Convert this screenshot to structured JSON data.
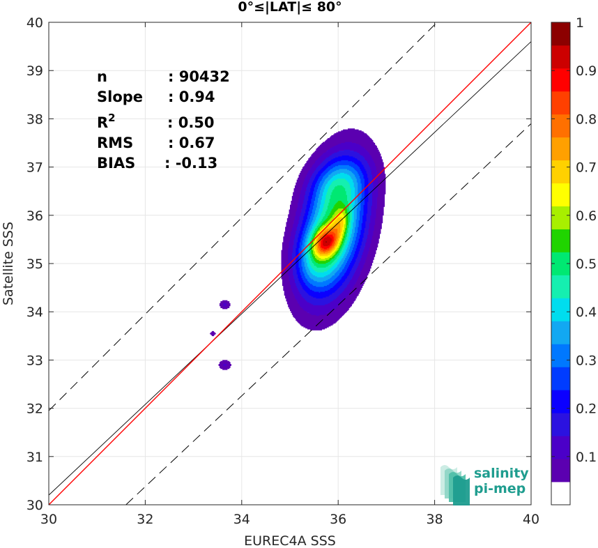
{
  "chart_data": {
    "type": "heatmap",
    "title": "0°≤|LAT|≤ 80°",
    "xlabel": "EUREC4A SSS",
    "ylabel": "Satellite SSS",
    "xlim": [
      30,
      40
    ],
    "ylim": [
      30,
      40
    ],
    "xticks": [
      "30",
      "32",
      "34",
      "36",
      "38",
      "40"
    ],
    "yticks": [
      "30",
      "31",
      "32",
      "33",
      "34",
      "35",
      "36",
      "37",
      "38",
      "39",
      "40"
    ],
    "grid": true,
    "stats": [
      {
        "label": "n",
        "value": ": 90432"
      },
      {
        "label": "Slope",
        "value": ": 0.94"
      },
      {
        "label": "R",
        "sup": "2",
        "value": ": 0.50"
      },
      {
        "label": "RMS",
        "value": ": 0.67"
      },
      {
        "label": "BIAS",
        "value": ": -0.13"
      }
    ],
    "lines": {
      "identity": {
        "x": [
          30,
          40
        ],
        "y": [
          30,
          40
        ],
        "color": "#ff0000"
      },
      "fit": {
        "x": [
          30,
          40
        ],
        "y": [
          30.2,
          39.6
        ],
        "color": "#000000"
      },
      "upper_bound": {
        "x": [
          30,
          40
        ],
        "y": [
          31.95,
          41.95
        ],
        "style": "dashed"
      },
      "lower_bound": {
        "x": [
          31.6,
          40
        ],
        "y": [
          30,
          37.9
        ],
        "style": "dashed"
      }
    },
    "density_peaks": [
      {
        "x": 35.9,
        "y": 35.7,
        "sx": 0.48,
        "sy": 0.95,
        "rho": 0.35,
        "w": 0.62
      },
      {
        "x": 35.75,
        "y": 35.45,
        "sx": 0.18,
        "sy": 0.2,
        "rho": 0.2,
        "w": 0.45
      },
      {
        "x": 36.05,
        "y": 35.85,
        "sx": 0.12,
        "sy": 0.22,
        "rho": 0.3,
        "w": 0.2
      },
      {
        "x": 36.0,
        "y": 36.7,
        "sx": 0.4,
        "sy": 0.35,
        "rho": 0.2,
        "w": 0.18
      },
      {
        "x": 35.5,
        "y": 35.1,
        "sx": 0.28,
        "sy": 0.42,
        "rho": 0.1,
        "w": 0.16
      },
      {
        "x": 33.65,
        "y": 34.15,
        "sx": 0.09,
        "sy": 0.07,
        "rho": 0,
        "w": 0.12
      },
      {
        "x": 33.4,
        "y": 33.55,
        "sx": 0.05,
        "sy": 0.04,
        "rho": 0,
        "w": 0.1
      },
      {
        "x": 33.65,
        "y": 32.9,
        "sx": 0.1,
        "sy": 0.08,
        "rho": 0,
        "w": 0.12
      }
    ],
    "contour_levels": [
      0.05,
      0.1,
      0.15,
      0.2,
      0.25,
      0.3,
      0.35,
      0.4,
      0.45,
      0.5,
      0.55,
      0.6,
      0.65,
      0.7,
      0.75,
      0.8,
      0.85,
      0.9,
      0.95,
      1.0
    ],
    "colorbar": {
      "range": [
        0,
        1
      ],
      "ticks": [
        "0.1",
        "0.2",
        "0.3",
        "0.4",
        "0.5",
        "0.6",
        "0.7",
        "0.8",
        "0.9",
        "1"
      ],
      "colors": [
        "#ffffff",
        "#5b00b0",
        "#4b00c8",
        "#2b12e0",
        "#0b00ff",
        "#003cff",
        "#0078ff",
        "#12a8f2",
        "#00ddee",
        "#15efb0",
        "#00e872",
        "#20d400",
        "#a8ef00",
        "#ffff00",
        "#ffd100",
        "#ffa000",
        "#ff7000",
        "#ff4000",
        "#ff0000",
        "#cc0000",
        "#8c0000"
      ]
    }
  },
  "logo": {
    "line1": "salinity",
    "line2": "pi-mep"
  }
}
